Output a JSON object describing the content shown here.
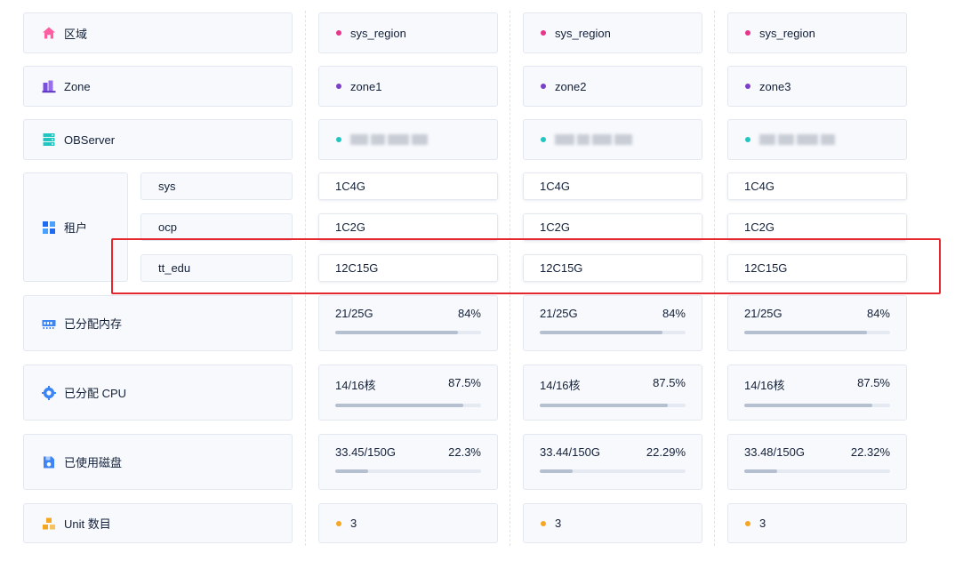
{
  "rows": {
    "region": {
      "label": "区域",
      "icon": "home-icon",
      "color": "#ff5fa2"
    },
    "zone": {
      "label": "Zone",
      "icon": "zone-bars-icon",
      "color": "#7b4fe0"
    },
    "observer": {
      "label": "OBServer",
      "icon": "server-icon",
      "color": "#21c6c1"
    },
    "tenant": {
      "label": "租户",
      "icon": "tenant-grid-icon",
      "color": "#1f6cf0",
      "names": [
        "sys",
        "ocp",
        "tt_edu"
      ]
    },
    "memory": {
      "label": "已分配内存",
      "icon": "memory-icon",
      "color": "#3d85f5"
    },
    "cpu": {
      "label": "已分配 CPU",
      "icon": "cpu-icon",
      "color": "#3d85f5"
    },
    "disk": {
      "label": "已使用磁盘",
      "icon": "disk-icon",
      "color": "#3d85f5"
    },
    "unit": {
      "label": "Unit 数目",
      "icon": "unit-icon",
      "color": "#f5a623"
    }
  },
  "zones": [
    {
      "region": "sys_region",
      "zone": "zone1",
      "tenants": [
        "1C4G",
        "1C2G",
        "12C15G"
      ],
      "memory": {
        "value": "21/25G",
        "percent": "84%",
        "fill": 0.84
      },
      "cpu": {
        "value": "14/16核",
        "percent": "87.5%",
        "fill": 0.875
      },
      "disk": {
        "value": "33.45/150G",
        "percent": "22.3%",
        "fill": 0.223
      },
      "unit_count": "3"
    },
    {
      "region": "sys_region",
      "zone": "zone2",
      "tenants": [
        "1C4G",
        "1C2G",
        "12C15G"
      ],
      "memory": {
        "value": "21/25G",
        "percent": "84%",
        "fill": 0.84
      },
      "cpu": {
        "value": "14/16核",
        "percent": "87.5%",
        "fill": 0.875
      },
      "disk": {
        "value": "33.44/150G",
        "percent": "22.29%",
        "fill": 0.2229
      },
      "unit_count": "3"
    },
    {
      "region": "sys_region",
      "zone": "zone3",
      "tenants": [
        "1C4G",
        "1C2G",
        "12C15G"
      ],
      "memory": {
        "value": "21/25G",
        "percent": "84%",
        "fill": 0.84
      },
      "cpu": {
        "value": "14/16核",
        "percent": "87.5%",
        "fill": 0.875
      },
      "disk": {
        "value": "33.48/150G",
        "percent": "22.32%",
        "fill": 0.2232
      },
      "unit_count": "3"
    }
  ],
  "colors": {
    "region_dot": "#e8348a",
    "zone_dot": "#7b3fc8",
    "observer_dot": "#21c6c1",
    "unit_dot": "#f5a623",
    "highlight": "#e5262d"
  }
}
